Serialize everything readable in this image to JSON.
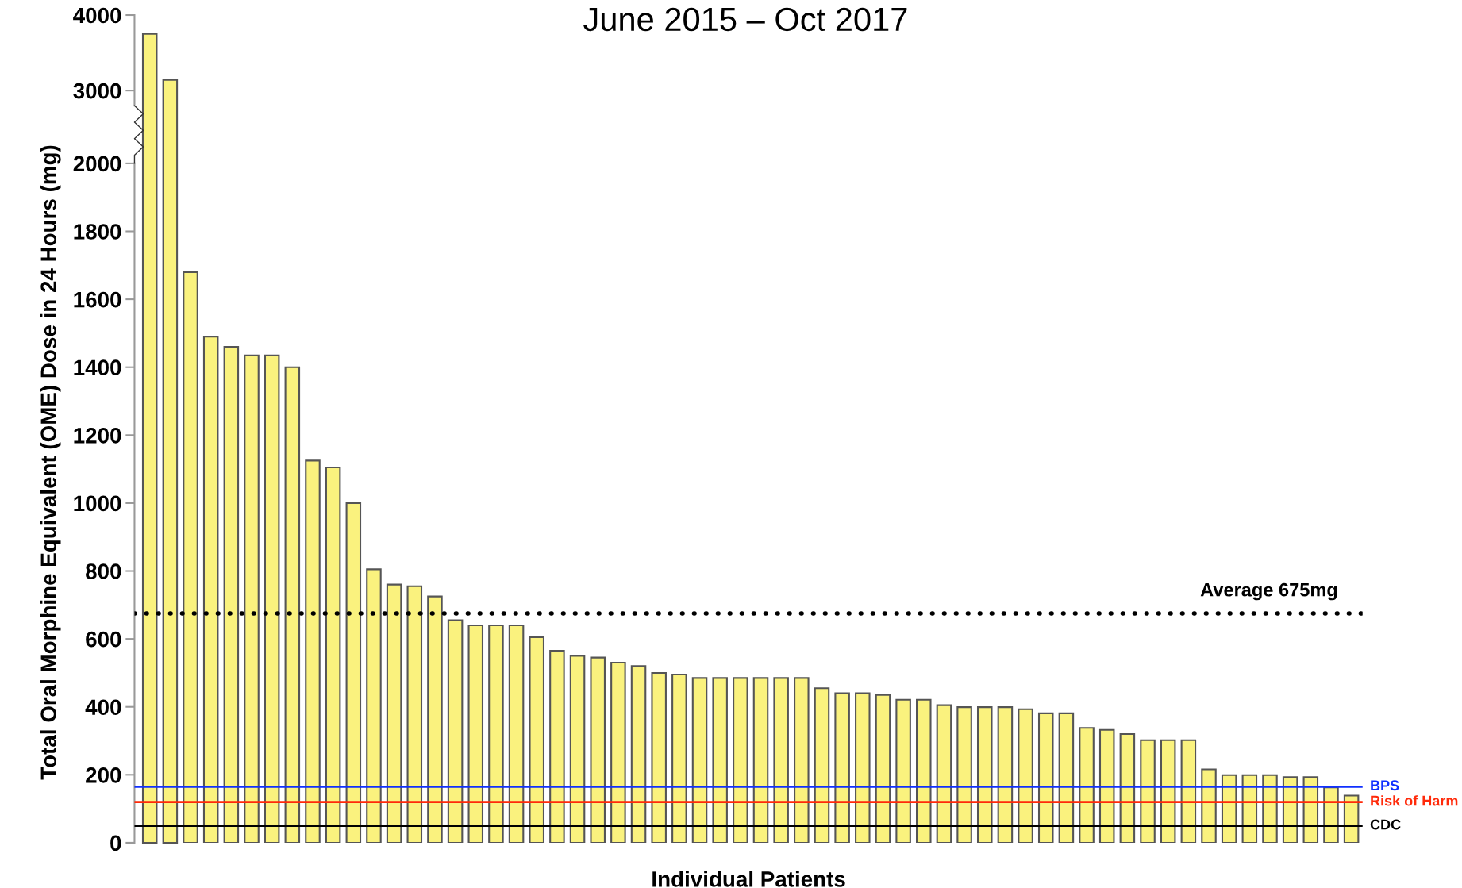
{
  "chart_data": [
    {
      "type": "bar",
      "title": "June 2015 – Oct 2017",
      "categories": [
        null,
        null,
        null,
        null,
        null,
        null,
        null,
        null,
        null,
        null,
        null,
        null,
        null,
        null,
        null,
        null,
        null,
        null,
        null,
        null,
        null,
        null,
        null,
        null,
        null,
        null,
        null,
        null,
        null,
        null,
        null,
        null,
        null,
        null,
        null,
        null,
        null,
        null,
        null,
        null,
        null,
        null,
        null,
        null,
        null,
        null,
        null,
        null,
        null,
        null,
        null,
        null,
        null,
        null,
        null,
        null,
        null,
        null,
        null,
        null
      ],
      "values": [
        3750,
        3140,
        null,
        null,
        null,
        null,
        null,
        null,
        null,
        null,
        null,
        null,
        null,
        null,
        null,
        null,
        null,
        null,
        null,
        null,
        null,
        null,
        null,
        null,
        null,
        null,
        null,
        null,
        null,
        null,
        null,
        null,
        null,
        null,
        null,
        null,
        null,
        null,
        null,
        null,
        null,
        null,
        null,
        null,
        null,
        null,
        null,
        null,
        null,
        null,
        null,
        null,
        null,
        null,
        null,
        null,
        null,
        null,
        null,
        null
      ],
      "color": "#faf27e",
      "ylim": [
        2800,
        4000
      ],
      "yticks": [
        3000,
        4000
      ],
      "grid": false
    },
    {
      "type": "bar",
      "xlabel": "Individual Patients",
      "ylabel": "Total Oral Morphine Equivalent (OME) Dose in 24 Hours (mg)",
      "categories": [
        null,
        null,
        null,
        null,
        null,
        null,
        null,
        null,
        null,
        null,
        null,
        null,
        null,
        null,
        null,
        null,
        null,
        null,
        null,
        null,
        null,
        null,
        null,
        null,
        null,
        null,
        null,
        null,
        null,
        null,
        null,
        null,
        null,
        null,
        null,
        null,
        null,
        null,
        null,
        null,
        null,
        null,
        null,
        null,
        null,
        null,
        null,
        null,
        null,
        null,
        null,
        null,
        null,
        null,
        null,
        null,
        null,
        null,
        null,
        null
      ],
      "values": [
        null,
        null,
        1680,
        1490,
        1460,
        1435,
        1435,
        1400,
        1125,
        1105,
        1000,
        805,
        760,
        755,
        725,
        655,
        640,
        640,
        640,
        605,
        565,
        550,
        545,
        530,
        520,
        500,
        495,
        485,
        485,
        485,
        485,
        485,
        485,
        455,
        440,
        440,
        435,
        421,
        421,
        405,
        399,
        399,
        399,
        393,
        381,
        381,
        338,
        332,
        320,
        302,
        302,
        302,
        216,
        199,
        199,
        199,
        193,
        193,
        163,
        139
      ],
      "color": "#faf27e",
      "ylim": [
        0,
        2000
      ],
      "yticks": [
        0,
        200,
        400,
        600,
        800,
        1000,
        1200,
        1400,
        1600,
        1800,
        2000
      ],
      "grid": false,
      "ref_lines": [
        {
          "axis": "y",
          "value": 675,
          "label": "Average 675mg",
          "color": "#000000",
          "line_style": "dotted"
        },
        {
          "axis": "y",
          "value": 120,
          "label": "Risk of Harm",
          "color": "#ff2a0a",
          "line_style": "solid"
        },
        {
          "axis": "y",
          "value": 165,
          "label": "BPS",
          "color": "#1030ff",
          "line_style": "solid"
        },
        {
          "axis": "y",
          "value": 50,
          "label": "CDC",
          "color": "#000000",
          "line_style": "solid"
        }
      ]
    }
  ]
}
